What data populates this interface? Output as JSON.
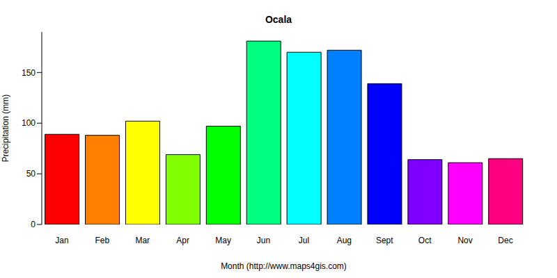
{
  "chart_data": {
    "type": "bar",
    "title": "Ocala",
    "x_label": "Month (http://www.maps4gis.com)",
    "y_label": "Precipitation (mm)",
    "categories": [
      "Jan",
      "Feb",
      "Mar",
      "Apr",
      "May",
      "Jun",
      "Jul",
      "Aug",
      "Sept",
      "Oct",
      "Nov",
      "Dec"
    ],
    "values": [
      89,
      88,
      102,
      69,
      97,
      181,
      170,
      172,
      139,
      64,
      61,
      65
    ],
    "colors": [
      "#FF0000",
      "#FF8000",
      "#FFFF00",
      "#80FF00",
      "#00FF00",
      "#00FF80",
      "#00FFFF",
      "#0080FF",
      "#0000FF",
      "#8000FF",
      "#FF00FF",
      "#FF0080"
    ],
    "ylim": [
      0,
      190
    ],
    "yticks": [
      0,
      50,
      100,
      150
    ],
    "grid": false
  }
}
